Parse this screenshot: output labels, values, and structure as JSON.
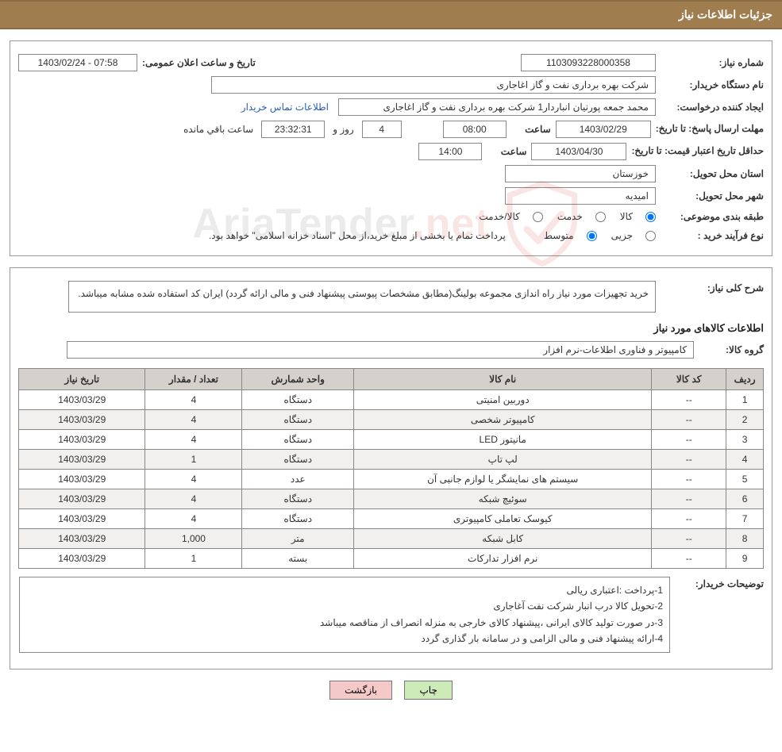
{
  "title_bar": "جزئیات اطلاعات نیاز",
  "fields": {
    "need_number_label": "شماره نیاز:",
    "need_number": "1103093228000358",
    "announce_datetime_label": "تاریخ و ساعت اعلان عمومی:",
    "announce_datetime": "1403/02/24 - 07:58",
    "buyer_org_label": "نام دستگاه خریدار:",
    "buyer_org": "شرکت بهره برداری نفت و گاز اغاجاری",
    "requester_label": "ایجاد کننده درخواست:",
    "requester": "محمد جمعه پورنیان انباردار1 شرکت بهره برداری نفت و گاز اغاجاری",
    "contact_link": "اطلاعات تماس خریدار",
    "reply_deadline_label": "مهلت ارسال پاسخ:  تا تاریخ:",
    "reply_date": "1403/02/29",
    "time_label": "ساعت",
    "reply_time": "08:00",
    "days_remaining": "4",
    "days_text": "روز و",
    "timer": "23:32:31",
    "remaining_text": "ساعت باقي مانده",
    "price_validity_label": "حداقل تاریخ اعتبار قیمت: تا تاریخ:",
    "price_date": "1403/04/30",
    "price_time": "14:00",
    "province_label": "استان محل تحویل:",
    "province": "خوزستان",
    "city_label": "شهر محل تحویل:",
    "city": "امیدیه",
    "category_label": "طبقه بندی موضوعی:",
    "cat_opt_goods": "کالا",
    "cat_opt_service": "خدمت",
    "cat_opt_both": "کالا/خدمت",
    "process_label": "نوع فرآیند خرید :",
    "proc_opt_partial": "جزیی",
    "proc_opt_medium": "متوسط",
    "process_note": "پرداخت تمام یا بخشی از مبلغ خرید،از محل \"اسناد خزانه اسلامی\" خواهد بود."
  },
  "description": {
    "label": "شرح کلی نیاز:",
    "text": "خرید تجهیزات مورد نیاز راه اندازی مجموعه بولینگ(مطابق مشخصات پیوستی پیشنهاد فنی و مالی ارائه گردد) ایران کد استفاده شده مشابه میباشد."
  },
  "items_header": "اطلاعات کالاهای مورد نیاز",
  "group": {
    "label": "گروه کالا:",
    "value": "کامپیوتر و فناوری اطلاعات-نرم افزار"
  },
  "table": {
    "columns": [
      "ردیف",
      "کد کالا",
      "نام کالا",
      "واحد شمارش",
      "تعداد / مقدار",
      "تاریخ نیاز"
    ],
    "col_widths": [
      "5%",
      "10%",
      "40%",
      "15%",
      "13%",
      "17%"
    ],
    "rows": [
      [
        "1",
        "--",
        "دوربین امنیتی",
        "دستگاه",
        "4",
        "1403/03/29"
      ],
      [
        "2",
        "--",
        "کامپیوتر شخصی",
        "دستگاه",
        "4",
        "1403/03/29"
      ],
      [
        "3",
        "--",
        "مانیتور LED",
        "دستگاه",
        "4",
        "1403/03/29"
      ],
      [
        "4",
        "--",
        "لپ تاپ",
        "دستگاه",
        "1",
        "1403/03/29"
      ],
      [
        "5",
        "--",
        "سیستم های نمایشگر یا لوازم جانبی آن",
        "عدد",
        "4",
        "1403/03/29"
      ],
      [
        "6",
        "--",
        "سوئیچ شبکه",
        "دستگاه",
        "4",
        "1403/03/29"
      ],
      [
        "7",
        "--",
        "کیوسک تعاملی کامپیوتری",
        "دستگاه",
        "4",
        "1403/03/29"
      ],
      [
        "8",
        "--",
        "کابل شبکه",
        "متر",
        "1,000",
        "1403/03/29"
      ],
      [
        "9",
        "--",
        "نرم افزار تدارکات",
        "بسته",
        "1",
        "1403/03/29"
      ]
    ]
  },
  "buyer_notes": {
    "label": "توضیحات خریدار:",
    "lines": [
      "1-پرداخت :اعتباری ریالی",
      "2-تحویل کالا درب انبار شرکت نفت آغاجاری",
      "3-در صورت تولید کالای ایرانی ،پیشنهاد کالای خارجی به منزله انصراف از مناقصه میباشد",
      "4-ارائه پیشنهاد فنی و مالی الزامی و در سامانه بار گذاری گردد"
    ]
  },
  "buttons": {
    "print": "چاپ",
    "back": "بازگشت"
  },
  "watermark": {
    "text_main": "AriaTender",
    "text_ext": ".net",
    "shield_stroke": "#d33"
  },
  "colors": {
    "title_bg": "#a07d4f",
    "border": "#888888",
    "th_bg": "#d4d0cb",
    "link": "#2a5db0",
    "btn_green": "#cdebb9",
    "btn_pink": "#f6c9c9"
  }
}
